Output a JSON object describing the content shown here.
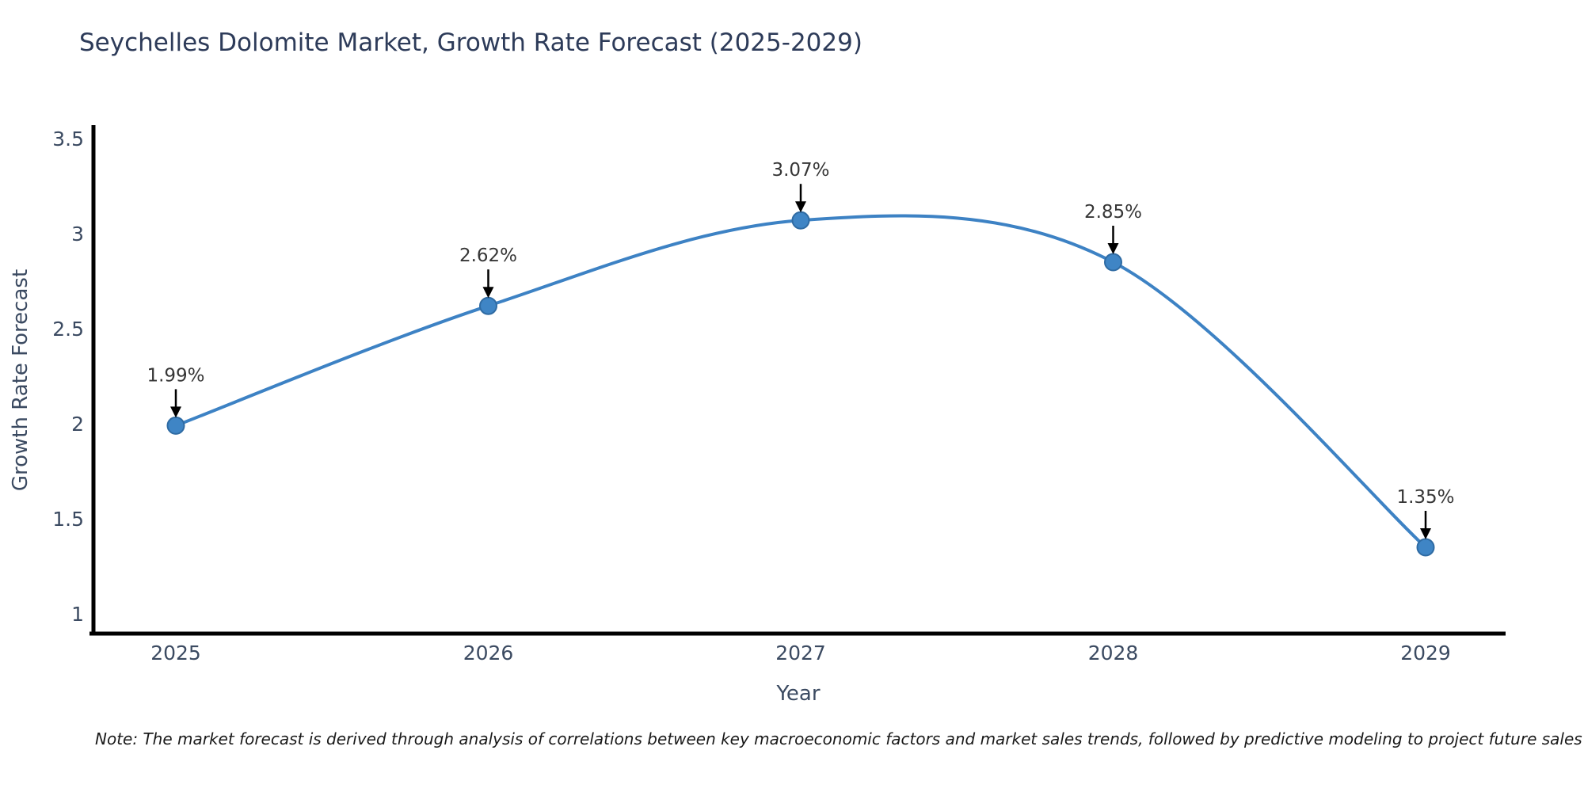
{
  "title": "Seychelles Dolomite Market, Growth Rate Forecast (2025-2029)",
  "note": "Note: The market forecast is derived through analysis of correlations between key macroeconomic factors and market sales trends, followed by predictive modeling to project future sales",
  "chart_data": {
    "type": "line",
    "title": "Seychelles Dolomite Market, Growth Rate Forecast (2025-2029)",
    "xlabel": "Year",
    "ylabel": "Growth Rate Forecast",
    "categories": [
      "2025",
      "2026",
      "2027",
      "2028",
      "2029"
    ],
    "series": [
      {
        "name": "Growth Rate Forecast",
        "values": [
          1.99,
          2.62,
          3.07,
          2.85,
          1.35
        ]
      }
    ],
    "point_labels": [
      "1.99%",
      "2.62%",
      "3.07%",
      "2.85%",
      "1.35%"
    ],
    "y_ticks": [
      {
        "label": "3.5",
        "value": 3.5
      },
      {
        "label": "3",
        "value": 3.0
      },
      {
        "label": "2.5",
        "value": 2.5
      },
      {
        "label": "2",
        "value": 2.0
      },
      {
        "label": "1.5",
        "value": 1.5
      },
      {
        "label": "1",
        "value": 1.0
      }
    ],
    "ylim": [
      0.9,
      3.56
    ],
    "grid": false,
    "legend": "none",
    "smooth": true,
    "colors": {
      "line": "#3d82c4",
      "marker_fill": "#3f85c5",
      "marker_edge": "#2f6ba3",
      "axis": "#000000",
      "annotation_arrow": "#000000"
    }
  }
}
